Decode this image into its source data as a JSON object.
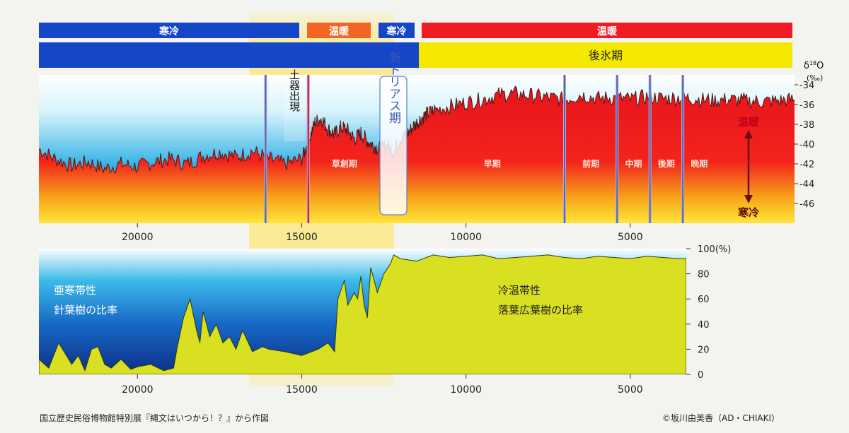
{
  "climate_bar": {
    "segments": [
      {
        "label": "寒冷",
        "color": "#1546c8"
      },
      {
        "label": "温暖",
        "color": "#f26522"
      },
      {
        "label": "寒冷",
        "color": "#1546c8"
      },
      {
        "label": "温暖",
        "color": "#ef1c24"
      }
    ]
  },
  "period_bar": {
    "segments": [
      {
        "label": "",
        "color": "#1546c8"
      },
      {
        "label": "後氷期",
        "color": "#f5e800"
      }
    ]
  },
  "highlight_color": "#ffe24a",
  "chart_data": [
    {
      "type": "area",
      "y_axis_label_parts": [
        "δ",
        "18",
        "O",
        "(‰)"
      ],
      "x_reversed": true,
      "xlim": [
        23000,
        0
      ],
      "ylim": [
        -48,
        -33
      ],
      "yticks": [
        -34,
        -36,
        -38,
        -40,
        -42,
        -44,
        -46
      ],
      "xticks": [
        20000,
        15000,
        10000,
        5000
      ],
      "x": [
        23000,
        22500,
        22000,
        21500,
        21000,
        20500,
        20000,
        19500,
        19000,
        18500,
        18000,
        17500,
        17000,
        16500,
        16000,
        15500,
        15000,
        14800,
        14600,
        14400,
        14200,
        14000,
        13800,
        13600,
        13400,
        13200,
        13000,
        12800,
        12600,
        12400,
        12200,
        12000,
        11800,
        11600,
        11400,
        11200,
        11000,
        10500,
        10000,
        9500,
        9000,
        8500,
        8000,
        7500,
        7000,
        6500,
        6000,
        5500,
        5000,
        4500,
        4000,
        3500,
        3000,
        2500,
        2000,
        1500,
        1000,
        500,
        0
      ],
      "values": [
        -40.5,
        -41.5,
        -42.2,
        -41.8,
        -42.5,
        -42.0,
        -42.3,
        -41.8,
        -41.5,
        -42.0,
        -41.2,
        -40.8,
        -41.3,
        -40.7,
        -41.5,
        -42.0,
        -41.5,
        -39.8,
        -37.8,
        -37.4,
        -38.5,
        -39.0,
        -38.3,
        -38.6,
        -39.5,
        -38.9,
        -39.7,
        -40.2,
        -40.5,
        -40.1,
        -40.8,
        -39.5,
        -39.0,
        -38.2,
        -37.5,
        -37.0,
        -36.6,
        -36.2,
        -35.8,
        -35.5,
        -35.0,
        -34.9,
        -35.1,
        -35.3,
        -35.5,
        -35.0,
        -35.4,
        -35.3,
        -35.5,
        -35.2,
        -35.4,
        -35.3,
        -35.4,
        -35.6,
        -35.5,
        -35.6,
        -35.7,
        -35.6,
        -35.5
      ],
      "markers": [
        {
          "x": 16100,
          "color": "#3a6fb5"
        },
        {
          "x": 14800,
          "color": "#d4141c"
        },
        {
          "x": 7000,
          "color": "#3a6fb5"
        },
        {
          "x": 5400,
          "color": "#3a6fb5"
        },
        {
          "x": 4400,
          "color": "#3a6fb5"
        },
        {
          "x": 3400,
          "color": "#3a6fb5"
        }
      ],
      "annotations": {
        "pottery": "土器出現",
        "younger_dryas": "新ドリアス期",
        "warm": "温暖",
        "cold": "寒冷"
      },
      "phases": [
        {
          "label": "草創期",
          "x": 13700
        },
        {
          "label": "早期",
          "x": 9200
        },
        {
          "label": "前期",
          "x": 6200
        },
        {
          "label": "中期",
          "x": 4900
        },
        {
          "label": "後期",
          "x": 3900
        },
        {
          "label": "晩期",
          "x": 2900
        }
      ]
    },
    {
      "type": "area",
      "x_reversed": true,
      "xlim": [
        23000,
        3500
      ],
      "ylim": [
        0,
        100
      ],
      "yticks": [
        0,
        20,
        40,
        60,
        80,
        100
      ],
      "ytick_unit": "(%)",
      "xticks": [
        20000,
        15000,
        10000,
        5000
      ],
      "x": [
        23000,
        22700,
        22400,
        22000,
        21800,
        21600,
        21400,
        21200,
        21000,
        20800,
        20500,
        20200,
        20000,
        19600,
        19200,
        18900,
        18800,
        18600,
        18400,
        18200,
        18100,
        18000,
        17800,
        17600,
        17400,
        17200,
        17000,
        16800,
        16500,
        16200,
        16000,
        15500,
        15000,
        14500,
        14200,
        14000,
        13900,
        13700,
        13600,
        13400,
        13300,
        13200,
        13100,
        13000,
        12900,
        12700,
        12500,
        12300,
        12200,
        12000,
        11500,
        11000,
        10500,
        10000,
        9500,
        9000,
        8500,
        8000,
        7500,
        7000,
        6500,
        6000,
        5500,
        5000,
        4500,
        4000,
        3500
      ],
      "values": [
        12,
        5,
        25,
        8,
        15,
        3,
        20,
        22,
        8,
        5,
        12,
        4,
        6,
        8,
        3,
        5,
        20,
        45,
        60,
        35,
        25,
        50,
        30,
        40,
        25,
        30,
        20,
        35,
        18,
        22,
        20,
        18,
        15,
        20,
        25,
        18,
        60,
        75,
        55,
        65,
        60,
        78,
        55,
        45,
        85,
        65,
        80,
        88,
        95,
        92,
        90,
        95,
        93,
        94,
        95,
        92,
        93,
        94,
        95,
        93,
        92,
        94,
        93,
        92,
        94,
        93,
        92
      ],
      "annotations": {
        "subarctic_line1": "亜寒帯性",
        "subarctic_line2": "針葉樹の比率",
        "temperate_line1": "冷温帯性",
        "temperate_line2": "落葉広葉樹の比率"
      }
    }
  ],
  "footer": {
    "source": "国立歴史民俗博物館特別展『縄文はいつから！？』から作図",
    "copyright": "©坂川由美香（AD・CHIAKI）"
  }
}
